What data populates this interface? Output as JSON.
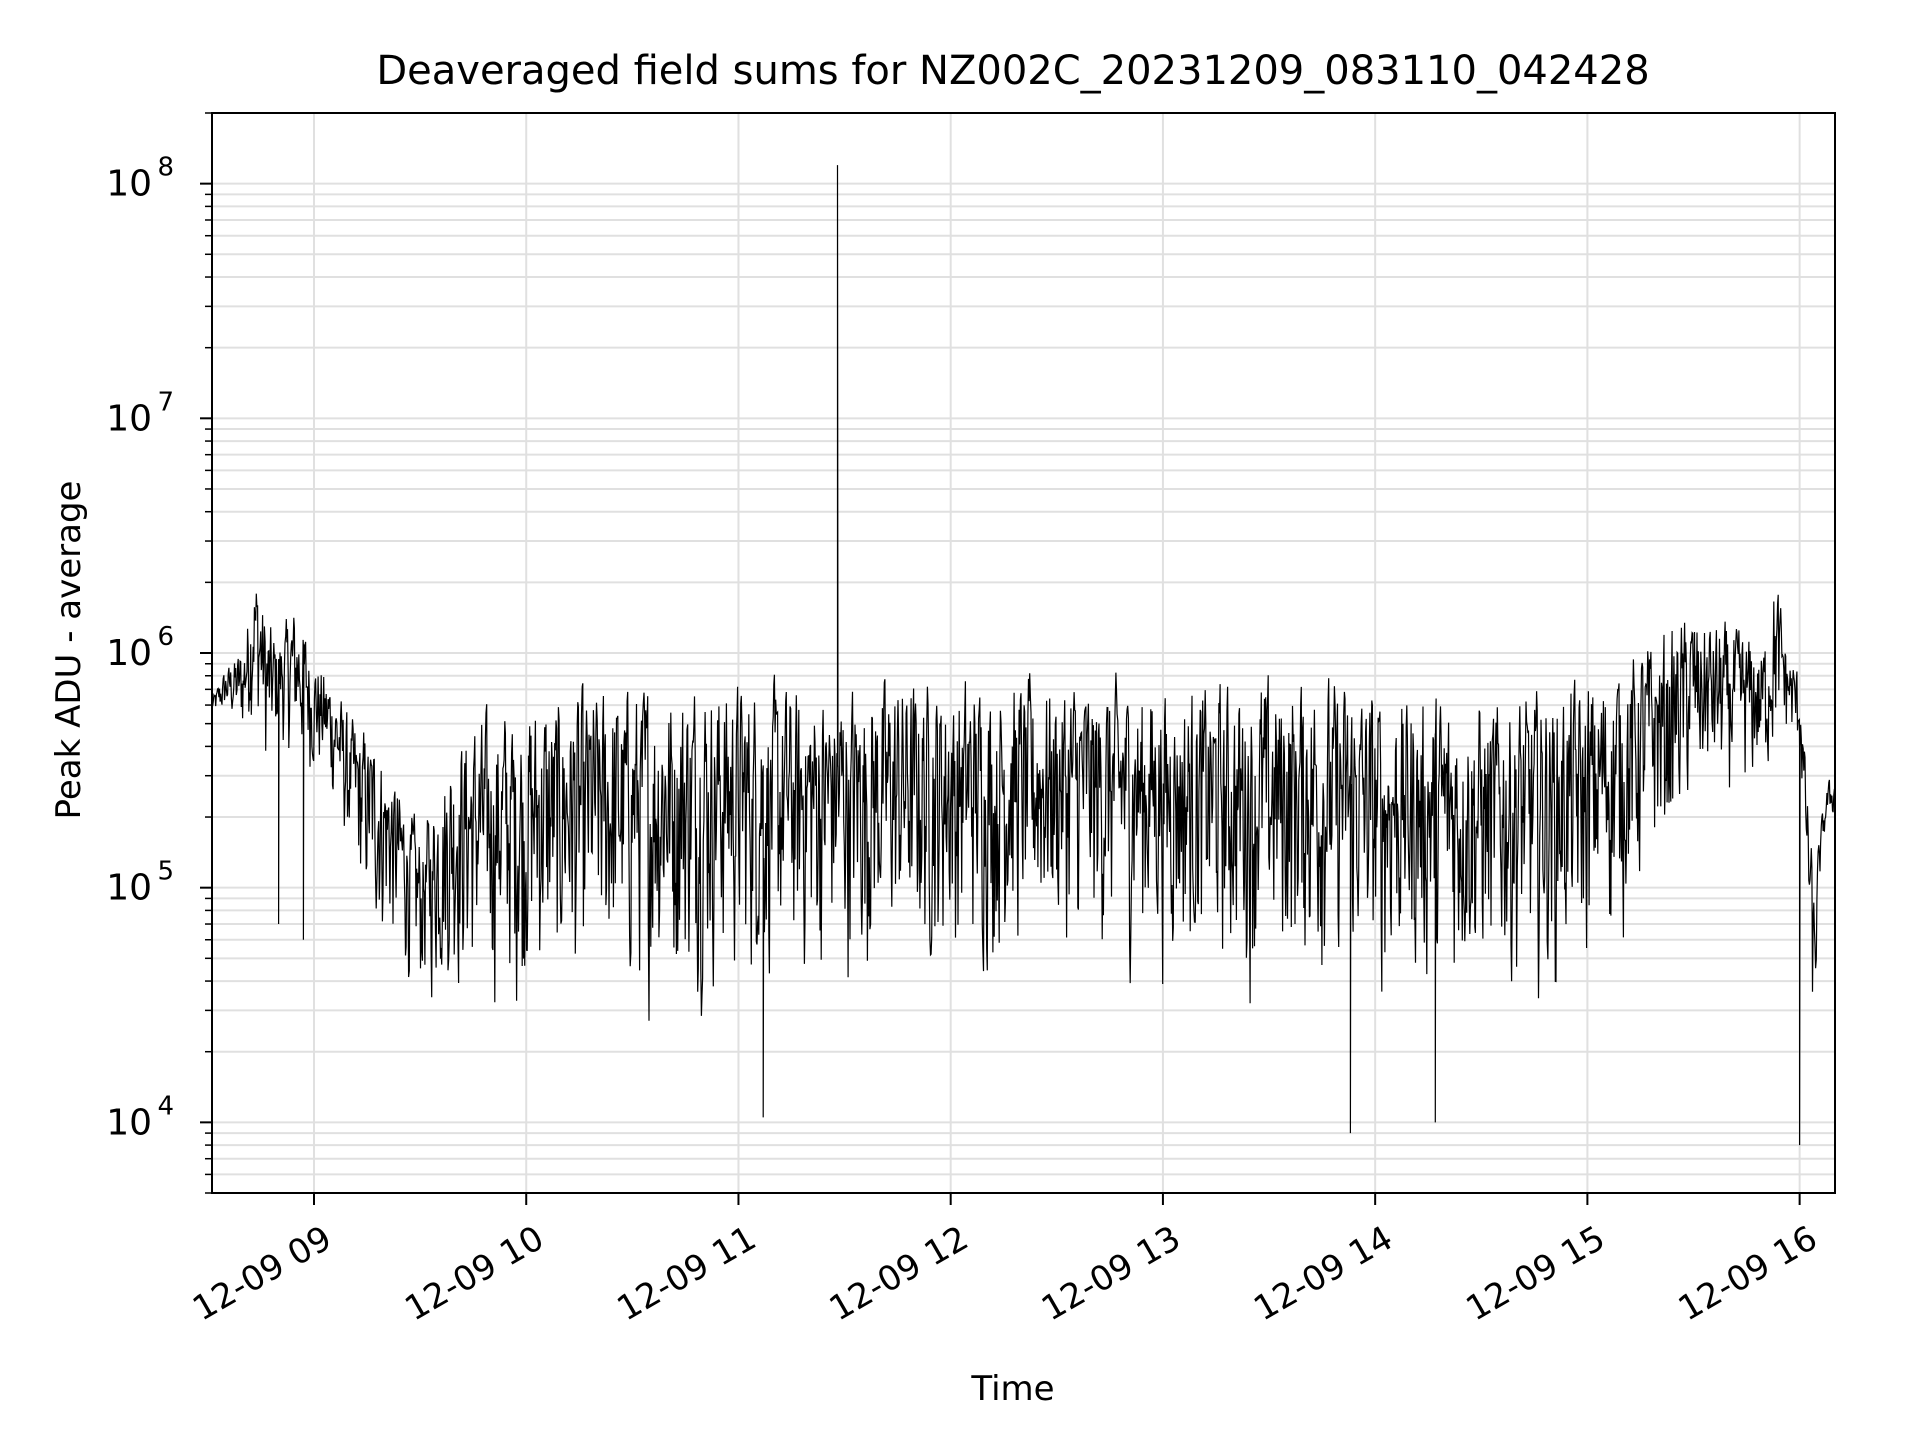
{
  "chart_data": {
    "type": "line",
    "title": "Deaveraged field sums for NZ002C_20231209_083110_042428",
    "xlabel": "Time",
    "ylabel": "Peak ADU - average",
    "yscale": "log",
    "xlim": [
      "2023-12-09 08:31:10",
      "2023-12-09 16:10:00"
    ],
    "ylim": [
      5000,
      200000000
    ],
    "grid": true,
    "line_color": "#000000",
    "grid_color": "#e0e0e0",
    "x_tick_labels": [
      "12-09 09",
      "12-09 10",
      "12-09 11",
      "12-09 12",
      "12-09 13",
      "12-09 14",
      "12-09 15",
      "12-09 16"
    ],
    "x_ticks": [
      "2023-12-09 09:00",
      "2023-12-09 10:00",
      "2023-12-09 11:00",
      "2023-12-09 12:00",
      "2023-12-09 13:00",
      "2023-12-09 14:00",
      "2023-12-09 15:00",
      "2023-12-09 16:00"
    ],
    "y_ticks": [
      {
        "value": 10000,
        "base": "10",
        "exp": "4"
      },
      {
        "value": 100000,
        "base": "10",
        "exp": "5"
      },
      {
        "value": 1000000,
        "base": "10",
        "exp": "6"
      },
      {
        "value": 10000000,
        "base": "10",
        "exp": "7"
      },
      {
        "value": 100000000,
        "base": "10",
        "exp": "8"
      }
    ],
    "series": [
      {
        "upper_envelope": {
          "x": [
            "08:31",
            "08:35",
            "08:40",
            "08:43",
            "08:47",
            "08:50",
            "08:55",
            "09:00",
            "09:05",
            "09:10",
            "09:15",
            "09:20",
            "09:25",
            "09:30",
            "09:40",
            "09:50",
            "10:00",
            "10:15",
            "10:30",
            "10:45",
            "11:00",
            "11:15",
            "11:30",
            "11:45",
            "12:00",
            "12:15",
            "12:30",
            "12:45",
            "13:00",
            "13:15",
            "13:30",
            "13:40",
            "13:50",
            "14:00",
            "14:15",
            "14:30",
            "14:45",
            "15:00",
            "15:10",
            "15:20",
            "15:30",
            "15:40",
            "15:50",
            "15:53",
            "15:57",
            "16:00",
            "16:02",
            "16:04",
            "16:06",
            "16:08",
            "16:10"
          ],
          "y": [
            650000,
            900000,
            1200000,
            2700000,
            1600000,
            1300000,
            1900000,
            1100000,
            900000,
            600000,
            550000,
            450000,
            300000,
            200000,
            600000,
            700000,
            800000,
            900000,
            950000,
            1000000,
            1000000,
            900000,
            950000,
            1000000,
            1000000,
            1000000,
            1000000,
            950000,
            950000,
            950000,
            1000000,
            1100000,
            950000,
            900000,
            850000,
            800000,
            850000,
            1000000,
            1200000,
            1500000,
            1800000,
            1500000,
            1300000,
            2600000,
            1100000,
            900000,
            300000,
            120000,
            200000,
            300000,
            300000
          ]
        },
        "lower_envelope": {
          "x": [
            "08:31",
            "08:35",
            "08:40",
            "08:43",
            "08:47",
            "08:50",
            "08:55",
            "09:00",
            "09:05",
            "09:10",
            "09:15",
            "09:20",
            "09:25",
            "09:30",
            "09:40",
            "09:50",
            "10:00",
            "10:15",
            "10:30",
            "10:45",
            "11:00",
            "11:15",
            "11:30",
            "11:45",
            "12:00",
            "12:15",
            "12:30",
            "12:45",
            "13:00",
            "13:15",
            "13:30",
            "13:40",
            "13:50",
            "14:00",
            "14:15",
            "14:30",
            "14:45",
            "15:00",
            "15:10",
            "15:20",
            "15:30",
            "15:40",
            "15:50",
            "15:53",
            "15:57",
            "16:00",
            "16:02",
            "16:04",
            "16:06",
            "16:08",
            "16:10"
          ],
          "y": [
            500000,
            450000,
            300000,
            350000,
            150000,
            300000,
            200000,
            200000,
            150000,
            80000,
            40000,
            30000,
            25000,
            20000,
            16000,
            14000,
            14000,
            13000,
            14000,
            15000,
            16000,
            17000,
            18000,
            19000,
            20000,
            22000,
            24000,
            22000,
            20000,
            18000,
            16000,
            17000,
            16000,
            15000,
            15000,
            15000,
            16000,
            18000,
            30000,
            60000,
            120000,
            140000,
            160000,
            200000,
            300000,
            250000,
            60000,
            9000,
            120000,
            160000,
            180000
          ]
        },
        "spikes": [
          {
            "x": "08:50",
            "y": 70000
          },
          {
            "x": "08:57",
            "y": 60000
          },
          {
            "x": "11:28",
            "y": 120000000
          },
          {
            "x": "11:07",
            "y": 10500
          },
          {
            "x": "13:53",
            "y": 9000
          },
          {
            "x": "14:17",
            "y": 10000
          },
          {
            "x": "16:00",
            "y": 8000
          }
        ]
      }
    ]
  }
}
